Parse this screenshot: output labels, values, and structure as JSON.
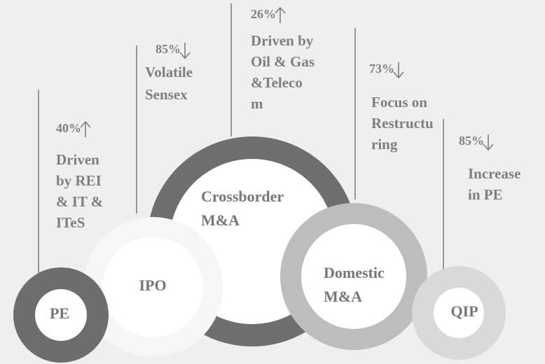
{
  "items": [
    {
      "label": [
        "PE"
      ],
      "change": "40%",
      "direction": "up",
      "description": [
        "Driven",
        "by REI",
        "& IT &",
        "ITeS"
      ]
    },
    {
      "label": [
        "IPO"
      ],
      "change": "85%",
      "direction": "down",
      "description": [
        "Volatile",
        "Sensex"
      ]
    },
    {
      "label": [
        "Crossborder",
        "M&A"
      ],
      "change": "26%",
      "direction": "up",
      "description": [
        "Driven by",
        "Oil & Gas",
        "&Teleco",
        "m"
      ]
    },
    {
      "label": [
        "Domestic",
        "M&A"
      ],
      "change": "73%",
      "direction": "down",
      "description": [
        "Focus on",
        "Restructu",
        "ring"
      ]
    },
    {
      "label": [
        "QIP"
      ],
      "change": "85%",
      "direction": "down",
      "description": [
        "Increase",
        "in PE"
      ]
    }
  ]
}
